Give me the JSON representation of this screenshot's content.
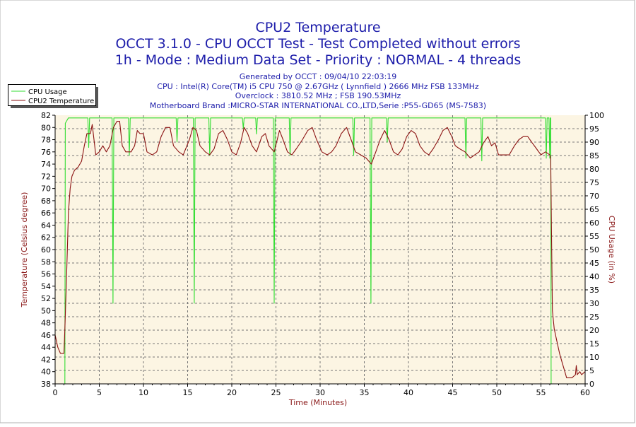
{
  "chart_data": {
    "type": "line",
    "title_lines": [
      "CPU2 Temperature",
      "OCCT 3.1.0 - CPU OCCT Test - Test Completed without errors",
      "1h - Mode : Medium Data Set - Priority : NORMAL - 4 threads"
    ],
    "info_lines": [
      "Generated by OCCT : 09/04/10 22:03:19",
      "CPU : Intel(R) Core(TM) i5 CPU 750 @ 2.67GHz ( Lynnfield ) 2666 MHz FSB 133MHz",
      "Overclock : 3810.52 MHz ; FSB 190.53MHz",
      "Motherboard Brand :MICRO-STAR INTERNATIONAL CO.,LTD,Serie :P55-GD65 (MS-7583)"
    ],
    "xlabel": "Time (Minutes)",
    "ylabel_left": "Temperature (Celsius degree)",
    "ylabel_right": "CPU Usage (in %)",
    "xlim": [
      0,
      60
    ],
    "ylim_left": [
      38,
      82
    ],
    "ylim_right": [
      0,
      100
    ],
    "x_ticks": [
      0,
      5,
      10,
      15,
      20,
      25,
      30,
      35,
      40,
      45,
      50,
      55,
      60
    ],
    "y_left_ticks": [
      38,
      40,
      42,
      44,
      46,
      48,
      50,
      52,
      54,
      56,
      58,
      60,
      62,
      64,
      66,
      68,
      70,
      72,
      74,
      76,
      78,
      80,
      82
    ],
    "y_right_ticks": [
      0,
      5,
      10,
      15,
      20,
      25,
      30,
      35,
      40,
      45,
      50,
      55,
      60,
      65,
      70,
      75,
      80,
      85,
      90,
      95,
      100
    ],
    "grid": true,
    "legend_position": "top-left",
    "colors": {
      "cpu_usage": "#33dd33",
      "temperature": "#8b1212",
      "title": "#1c1caa",
      "axis_label": "#8b1a1a",
      "plot_bg": "#fcf5e3"
    },
    "series": [
      {
        "name": "CPU Usage",
        "axis": "right",
        "points": [
          [
            0,
            0
          ],
          [
            1.1,
            0
          ],
          [
            1.15,
            97
          ],
          [
            1.5,
            99
          ],
          [
            3.7,
            99
          ],
          [
            3.8,
            88
          ],
          [
            3.9,
            99
          ],
          [
            6.45,
            99
          ],
          [
            6.55,
            30
          ],
          [
            6.65,
            99
          ],
          [
            8.3,
            99
          ],
          [
            8.4,
            85
          ],
          [
            8.5,
            99
          ],
          [
            13.7,
            99
          ],
          [
            13.8,
            90
          ],
          [
            13.9,
            99
          ],
          [
            15.65,
            99
          ],
          [
            15.75,
            30
          ],
          [
            15.85,
            99
          ],
          [
            17.4,
            99
          ],
          [
            17.5,
            85
          ],
          [
            17.6,
            99
          ],
          [
            21.2,
            99
          ],
          [
            21.3,
            95
          ],
          [
            21.4,
            99
          ],
          [
            22.7,
            99
          ],
          [
            22.8,
            93
          ],
          [
            22.9,
            99
          ],
          [
            24.7,
            99
          ],
          [
            24.8,
            30
          ],
          [
            24.9,
            99
          ],
          [
            26.5,
            99
          ],
          [
            26.6,
            85
          ],
          [
            26.7,
            99
          ],
          [
            33.7,
            99
          ],
          [
            33.8,
            85
          ],
          [
            33.9,
            99
          ],
          [
            35.65,
            99
          ],
          [
            35.75,
            30
          ],
          [
            35.85,
            99
          ],
          [
            37.5,
            99
          ],
          [
            37.6,
            90
          ],
          [
            37.7,
            99
          ],
          [
            46.4,
            99
          ],
          [
            46.5,
            84
          ],
          [
            46.6,
            99
          ],
          [
            48.2,
            99
          ],
          [
            48.3,
            83
          ],
          [
            48.4,
            99
          ],
          [
            55.5,
            99
          ],
          [
            55.6,
            84
          ],
          [
            55.7,
            99
          ],
          [
            55.9,
            99
          ],
          [
            56.0,
            84
          ],
          [
            56.05,
            99
          ],
          [
            56.1,
            99
          ],
          [
            56.15,
            0
          ],
          [
            60,
            0
          ]
        ]
      },
      {
        "name": "CPU2 Temperature",
        "axis": "left",
        "points": [
          [
            0,
            46
          ],
          [
            0.3,
            44
          ],
          [
            0.6,
            43
          ],
          [
            1.0,
            43
          ],
          [
            1.1,
            47
          ],
          [
            1.3,
            56
          ],
          [
            1.5,
            66
          ],
          [
            1.7,
            70
          ],
          [
            1.9,
            72
          ],
          [
            2.2,
            73
          ],
          [
            2.6,
            73.5
          ],
          [
            3.0,
            74.5
          ],
          [
            3.3,
            77
          ],
          [
            3.6,
            79
          ],
          [
            4.0,
            79
          ],
          [
            4.2,
            80.5
          ],
          [
            4.4,
            78
          ],
          [
            4.6,
            75.5
          ],
          [
            5.0,
            76
          ],
          [
            5.4,
            77
          ],
          [
            5.8,
            76
          ],
          [
            6.2,
            77
          ],
          [
            6.6,
            80
          ],
          [
            7.0,
            81
          ],
          [
            7.3,
            81
          ],
          [
            7.6,
            77
          ],
          [
            8.0,
            76
          ],
          [
            8.6,
            76
          ],
          [
            9.0,
            77
          ],
          [
            9.3,
            79.5
          ],
          [
            9.6,
            79
          ],
          [
            10.0,
            79
          ],
          [
            10.4,
            76
          ],
          [
            11.0,
            75.5
          ],
          [
            11.5,
            76
          ],
          [
            12.0,
            78.5
          ],
          [
            12.5,
            80
          ],
          [
            13.0,
            80
          ],
          [
            13.4,
            77
          ],
          [
            14.0,
            76
          ],
          [
            14.5,
            75.5
          ],
          [
            15.2,
            78
          ],
          [
            15.6,
            80
          ],
          [
            16.0,
            79.5
          ],
          [
            16.4,
            77
          ],
          [
            17.0,
            76
          ],
          [
            17.5,
            75.5
          ],
          [
            18.0,
            76.5
          ],
          [
            18.5,
            79
          ],
          [
            19.0,
            79.5
          ],
          [
            19.5,
            78
          ],
          [
            20.0,
            76
          ],
          [
            20.5,
            75.5
          ],
          [
            21.0,
            77.5
          ],
          [
            21.4,
            80
          ],
          [
            21.8,
            79
          ],
          [
            22.3,
            77
          ],
          [
            22.8,
            76
          ],
          [
            23.4,
            78.5
          ],
          [
            23.8,
            79
          ],
          [
            24.2,
            77
          ],
          [
            24.8,
            76
          ],
          [
            25.4,
            79.5
          ],
          [
            25.8,
            78
          ],
          [
            26.3,
            76
          ],
          [
            26.8,
            75.5
          ],
          [
            27.3,
            76.5
          ],
          [
            28.0,
            78
          ],
          [
            28.6,
            79.5
          ],
          [
            29.1,
            80
          ],
          [
            29.6,
            78
          ],
          [
            30.2,
            76
          ],
          [
            30.8,
            75.5
          ],
          [
            31.3,
            76
          ],
          [
            31.8,
            77
          ],
          [
            32.4,
            79
          ],
          [
            33.0,
            80
          ],
          [
            33.5,
            78
          ],
          [
            34.0,
            76
          ],
          [
            34.6,
            75.5
          ],
          [
            35.2,
            75
          ],
          [
            35.8,
            74
          ],
          [
            36.3,
            76
          ],
          [
            36.8,
            78
          ],
          [
            37.3,
            79.5
          ],
          [
            37.8,
            78
          ],
          [
            38.3,
            76
          ],
          [
            38.8,
            75.5
          ],
          [
            39.3,
            76.5
          ],
          [
            39.8,
            78.5
          ],
          [
            40.3,
            79.5
          ],
          [
            40.8,
            79
          ],
          [
            41.3,
            77
          ],
          [
            41.8,
            76
          ],
          [
            42.3,
            75.5
          ],
          [
            42.8,
            76.5
          ],
          [
            43.4,
            78
          ],
          [
            43.9,
            79.5
          ],
          [
            44.4,
            80
          ],
          [
            44.9,
            78.5
          ],
          [
            45.3,
            77
          ],
          [
            45.8,
            76.5
          ],
          [
            46.4,
            76
          ],
          [
            47.0,
            75
          ],
          [
            47.5,
            75.5
          ],
          [
            48.0,
            76
          ],
          [
            48.5,
            77.5
          ],
          [
            49.0,
            78.5
          ],
          [
            49.4,
            77
          ],
          [
            49.8,
            77.5
          ],
          [
            50.2,
            75.5
          ],
          [
            50.8,
            75.5
          ],
          [
            51.4,
            75.5
          ],
          [
            52.0,
            77
          ],
          [
            52.5,
            78
          ],
          [
            53.0,
            78.5
          ],
          [
            53.5,
            78.5
          ],
          [
            54.0,
            77.5
          ],
          [
            54.5,
            76.5
          ],
          [
            55.0,
            75.5
          ],
          [
            55.5,
            76
          ],
          [
            56.0,
            75.5
          ],
          [
            56.1,
            75
          ],
          [
            56.2,
            62
          ],
          [
            56.3,
            50
          ],
          [
            56.5,
            47
          ],
          [
            56.8,
            45
          ],
          [
            57.1,
            43
          ],
          [
            57.4,
            41.5
          ],
          [
            57.7,
            40
          ],
          [
            57.9,
            39
          ],
          [
            58.5,
            39
          ],
          [
            58.9,
            39.5
          ],
          [
            59.0,
            41
          ],
          [
            59.1,
            39.5
          ],
          [
            59.4,
            40
          ],
          [
            59.6,
            39.5
          ],
          [
            60,
            40
          ]
        ]
      }
    ]
  }
}
